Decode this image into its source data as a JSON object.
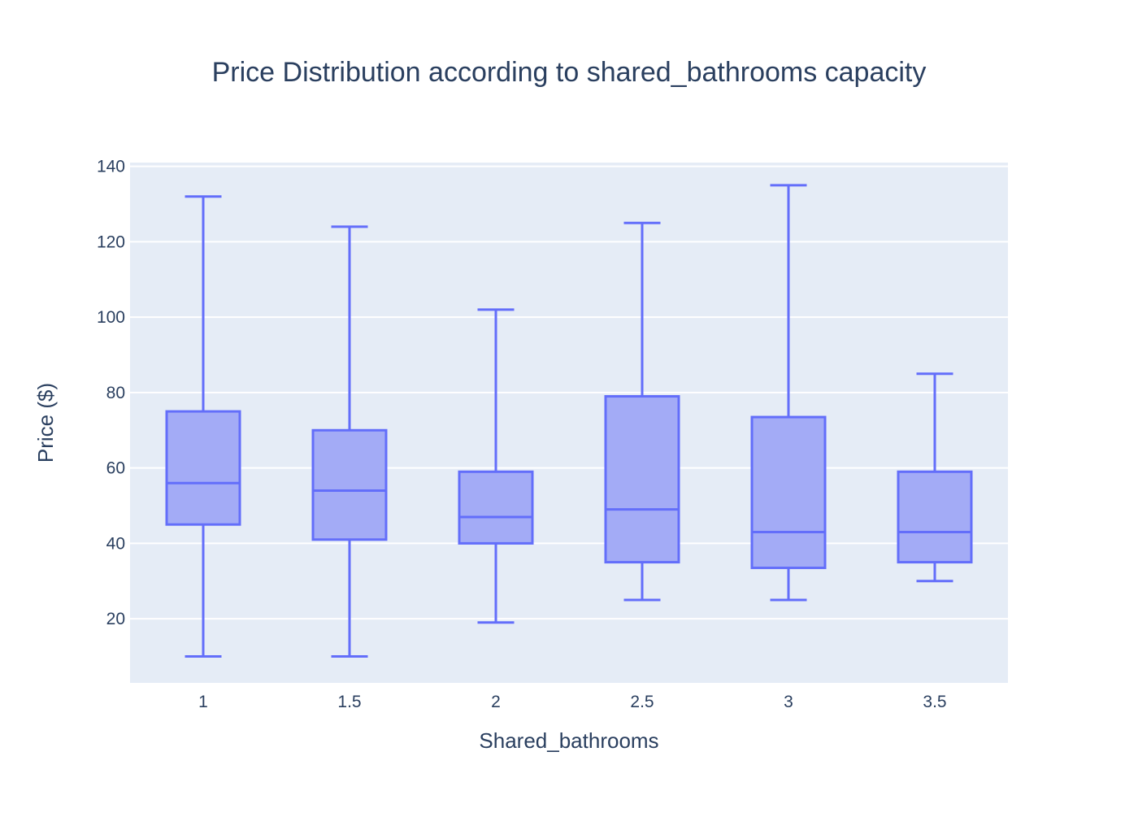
{
  "chart_data": {
    "type": "box",
    "title": "Price Distribution according to shared_bathrooms capacity",
    "xlabel": "Shared_bathrooms",
    "ylabel": "Price ($)",
    "categories": [
      "1",
      "1.5",
      "2",
      "2.5",
      "3",
      "3.5"
    ],
    "ylim": [
      3,
      141
    ],
    "yticks": [
      20,
      40,
      60,
      80,
      100,
      120,
      140
    ],
    "grid": true,
    "boxes": [
      {
        "category": "1",
        "min": 10,
        "q1": 45,
        "median": 56,
        "q3": 75,
        "max": 132
      },
      {
        "category": "1.5",
        "min": 10,
        "q1": 41,
        "median": 54,
        "q3": 70,
        "max": 124
      },
      {
        "category": "2",
        "min": 19,
        "q1": 40,
        "median": 47,
        "q3": 59,
        "max": 102
      },
      {
        "category": "2.5",
        "min": 25,
        "q1": 35,
        "median": 49,
        "q3": 79,
        "max": 125
      },
      {
        "category": "3",
        "min": 25,
        "q1": 33.5,
        "median": 43,
        "q3": 73.5,
        "max": 135
      },
      {
        "category": "3.5",
        "min": 30,
        "q1": 35,
        "median": 43,
        "q3": 59,
        "max": 85
      }
    ],
    "colors": {
      "line": "#636efa",
      "fill": "#a3abf6",
      "plot_bg": "#e5ecf6",
      "grid": "#ffffff",
      "text": "#2a3f5f"
    }
  }
}
